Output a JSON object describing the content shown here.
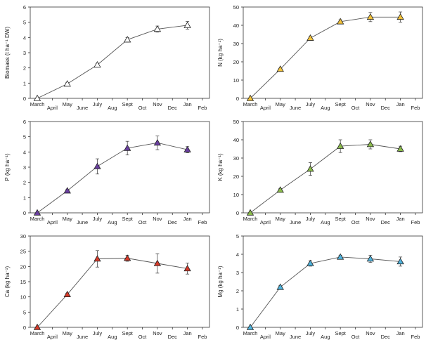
{
  "chart_data": [
    {
      "type": "line",
      "ylabel": "Biomass (t ha⁻¹ DW)",
      "ylim": [
        0,
        6
      ],
      "yticks": [
        0,
        1,
        2,
        3,
        4,
        5,
        6
      ],
      "x_tick_labels": [
        "March",
        "April",
        "May",
        "June",
        "July",
        "Aug",
        "Sept",
        "Oct",
        "Nov",
        "Dec",
        "Jan",
        "Feb"
      ],
      "point_month_index": [
        0,
        2,
        4,
        6,
        8,
        10
      ],
      "values": [
        0,
        0.95,
        2.2,
        3.85,
        4.55,
        4.8
      ],
      "error": [
        0,
        0.08,
        0.1,
        0.15,
        0.2,
        0.25
      ],
      "marker_color": "#ffffff"
    },
    {
      "type": "line",
      "ylabel": "N (kg ha⁻¹)",
      "ylim": [
        0,
        50
      ],
      "yticks": [
        0,
        10,
        20,
        30,
        40,
        50
      ],
      "x_tick_labels": [
        "March",
        "April",
        "May",
        "June",
        "July",
        "Aug",
        "Sept",
        "Oct",
        "Nov",
        "Dec",
        "Jan",
        "Feb"
      ],
      "point_month_index": [
        0,
        2,
        4,
        6,
        8,
        10
      ],
      "values": [
        0,
        16,
        33,
        42,
        44.5,
        44.5
      ],
      "error": [
        0,
        0.5,
        0.8,
        1.0,
        2.5,
        2.8
      ],
      "marker_color": "#f2c23c"
    },
    {
      "type": "line",
      "ylabel": "P (kg ha⁻¹)",
      "ylim": [
        0,
        6
      ],
      "yticks": [
        0,
        1,
        2,
        3,
        4,
        5,
        6
      ],
      "x_tick_labels": [
        "March",
        "April",
        "May",
        "June",
        "July",
        "Aug",
        "Sept",
        "Oct",
        "Nov",
        "Dec",
        "Jan",
        "Feb"
      ],
      "point_month_index": [
        0,
        2,
        4,
        6,
        8,
        10
      ],
      "values": [
        0,
        1.45,
        3.05,
        4.25,
        4.6,
        4.15
      ],
      "error": [
        0,
        0.08,
        0.5,
        0.45,
        0.45,
        0.2
      ],
      "marker_color": "#6a3fa0"
    },
    {
      "type": "line",
      "ylabel": "K (kg ha⁻¹)",
      "ylim": [
        0,
        50
      ],
      "yticks": [
        0,
        10,
        20,
        30,
        40,
        50
      ],
      "x_tick_labels": [
        "March",
        "April",
        "May",
        "June",
        "July",
        "Aug",
        "Sept",
        "Oct",
        "Nov",
        "Dec",
        "Jan",
        "Feb"
      ],
      "point_month_index": [
        0,
        2,
        4,
        6,
        8,
        10
      ],
      "values": [
        0,
        12.5,
        24,
        36.5,
        37.5,
        35
      ],
      "error": [
        0,
        0.8,
        3.5,
        3.5,
        2.5,
        1.5
      ],
      "marker_color": "#8bbb4c"
    },
    {
      "type": "line",
      "ylabel": "Ca (kg ha⁻¹)",
      "ylim": [
        0,
        30
      ],
      "yticks": [
        0,
        5,
        10,
        15,
        20,
        25,
        30
      ],
      "x_tick_labels": [
        "March",
        "April",
        "May",
        "June",
        "July",
        "Aug",
        "Sept",
        "Oct",
        "Nov",
        "Dec",
        "Jan",
        "Feb"
      ],
      "point_month_index": [
        0,
        2,
        4,
        6,
        8,
        10
      ],
      "values": [
        0,
        10.8,
        22.5,
        22.7,
        21,
        19.3
      ],
      "error": [
        0,
        0.4,
        2.7,
        1.0,
        3.2,
        1.8
      ],
      "marker_color": "#d63a2a"
    },
    {
      "type": "line",
      "ylabel": "Mg (kg ha⁻¹)",
      "ylim": [
        0,
        5
      ],
      "yticks": [
        0,
        1,
        2,
        3,
        4,
        5
      ],
      "x_tick_labels": [
        "March",
        "April",
        "May",
        "June",
        "July",
        "Aug",
        "Sept",
        "Oct",
        "Nov",
        "Dec",
        "Jan",
        "Feb"
      ],
      "point_month_index": [
        0,
        2,
        4,
        6,
        8,
        10
      ],
      "values": [
        0,
        2.2,
        3.5,
        3.85,
        3.75,
        3.6
      ],
      "error": [
        0,
        0.08,
        0.15,
        0.1,
        0.2,
        0.25
      ],
      "marker_color": "#4fb3dd"
    }
  ]
}
